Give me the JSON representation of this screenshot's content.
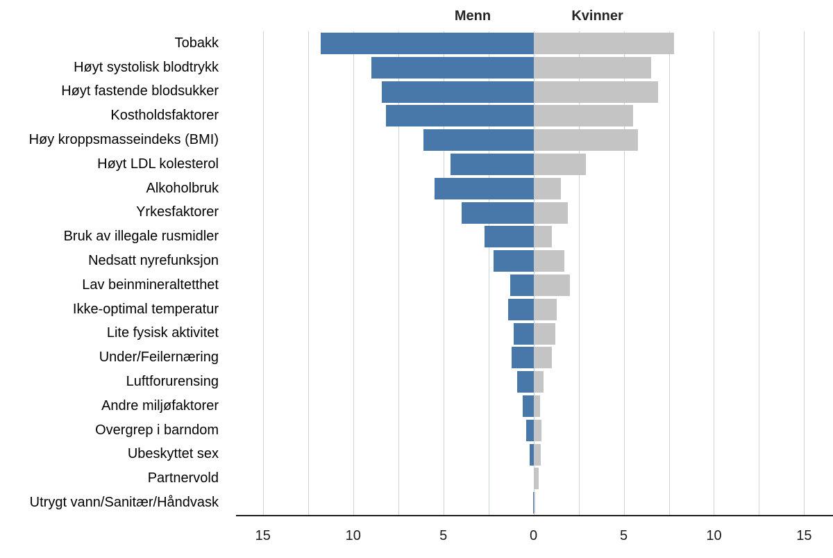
{
  "chart_data": {
    "type": "bar",
    "orientation": "horizontal-diverging",
    "title": "",
    "legend_position": "top",
    "grid": true,
    "categories": [
      "Tobakk",
      "Høyt systolisk blodtrykk",
      "Høyt fastende blodsukker",
      "Kostholdsfaktorer",
      "Høy kroppsmasseindeks (BMI)",
      "Høyt LDL kolesterol",
      "Alkoholbruk",
      "Yrkesfaktorer",
      "Bruk av illegale rusmidler",
      "Nedsatt nyrefunksjon",
      "Lav beinmineraltetthet",
      "Ikke-optimal temperatur",
      "Lite fysisk aktivitet",
      "Under/Feilernæring",
      "Luftforurensing",
      "Andre miljøfaktorer",
      "Overgrep i barndom",
      "Ubeskyttet sex",
      "Partnervold",
      "Utrygt vann/Sanitær/Håndvask"
    ],
    "series": [
      {
        "name": "Menn",
        "side": "left",
        "color": "#4878a9",
        "values": [
          11.8,
          9.0,
          8.4,
          8.2,
          6.1,
          4.6,
          5.5,
          4.0,
          2.7,
          2.2,
          1.3,
          1.4,
          1.1,
          1.2,
          0.9,
          0.6,
          0.4,
          0.23,
          0.0,
          0.04
        ]
      },
      {
        "name": "Kvinner",
        "side": "right",
        "color": "#c4c4c4",
        "values": [
          7.8,
          6.5,
          6.9,
          5.5,
          5.8,
          2.9,
          1.5,
          1.9,
          1.0,
          1.7,
          2.0,
          1.3,
          1.2,
          1.0,
          0.55,
          0.35,
          0.45,
          0.4,
          0.27,
          0.08
        ]
      }
    ],
    "x_axis": {
      "min": -16.3,
      "max": 16.6,
      "gridline_step": 2.5,
      "grid_min": -15,
      "grid_max": 15,
      "tick_values": [
        -15,
        -10,
        -5,
        0,
        5,
        10,
        15
      ],
      "tick_labels": [
        "15",
        "10",
        "5",
        "0",
        "5",
        "10",
        "15"
      ]
    },
    "colors": {
      "bar_left": "#4878a9",
      "bar_right": "#c4c4c4",
      "gridline": "#c8d4df",
      "axis_line": "#1a1a1a",
      "text": "#000000"
    }
  }
}
